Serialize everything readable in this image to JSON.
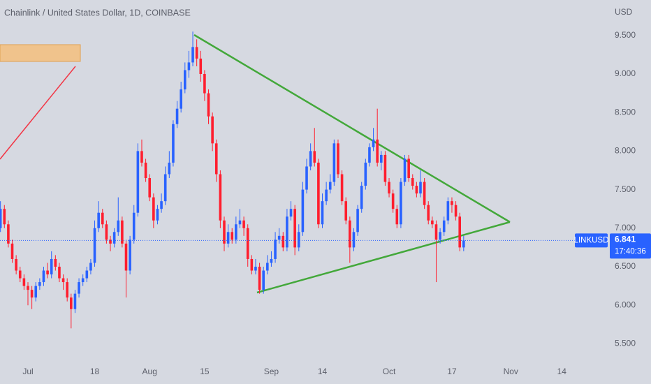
{
  "chart_data": {
    "type": "candlestick",
    "title": "Chainlink / United States Dollar, 1D, COINBASE",
    "y_axis_label": "USD",
    "symbol": "LINKUSD",
    "last_price": {
      "value": 6.841,
      "label": "6.841"
    },
    "countdown": "17:40:36",
    "up_color": "#2962ff",
    "down_color": "#ff1e2e",
    "ylim": [
      5.25,
      9.96
    ],
    "yticks": [
      {
        "value": 5.5,
        "label": "5.500"
      },
      {
        "value": 6.0,
        "label": "6.000"
      },
      {
        "value": 6.5,
        "label": "6.500"
      },
      {
        "value": 7.0,
        "label": "7.000"
      },
      {
        "value": 7.5,
        "label": "7.500"
      },
      {
        "value": 8.0,
        "label": "8.000"
      },
      {
        "value": 8.5,
        "label": "8.500"
      },
      {
        "value": 9.0,
        "label": "9.000"
      },
      {
        "value": 9.5,
        "label": "9.500"
      }
    ],
    "grid": false,
    "categories": [
      null,
      null,
      null,
      null,
      null,
      null,
      null,
      "Jul",
      null,
      null,
      null,
      null,
      null,
      null,
      null,
      null,
      null,
      null,
      null,
      null,
      null,
      null,
      null,
      null,
      "18",
      null,
      null,
      null,
      null,
      null,
      null,
      null,
      null,
      null,
      null,
      null,
      null,
      null,
      "Aug",
      null,
      null,
      null,
      null,
      null,
      null,
      null,
      null,
      null,
      null,
      null,
      null,
      null,
      "15",
      null,
      null,
      null,
      null,
      null,
      null,
      null,
      null,
      null,
      null,
      null,
      null,
      null,
      null,
      null,
      null,
      "Sep",
      null,
      null,
      null,
      null,
      null,
      null,
      null,
      null,
      null,
      null,
      null,
      null,
      "14",
      null,
      null,
      null,
      null,
      null,
      null,
      null,
      null,
      null,
      null,
      null,
      null,
      null,
      null,
      null,
      null,
      "Oct",
      null,
      null,
      null,
      null,
      null,
      null,
      null,
      null,
      null,
      null,
      null,
      null,
      null,
      null,
      null,
      "17",
      null,
      null,
      null,
      null,
      null,
      null,
      null,
      null,
      null,
      null,
      null,
      null,
      null,
      null,
      "Nov",
      null,
      null,
      null,
      null,
      null,
      null,
      null,
      null,
      null,
      null,
      null,
      null,
      "14",
      null,
      null,
      null,
      null,
      null,
      null,
      null,
      null,
      null,
      null,
      null
    ],
    "ohlc": [
      [
        7.0,
        7.35,
        6.95,
        7.25
      ],
      [
        7.25,
        7.3,
        7.0,
        7.05
      ],
      [
        7.05,
        7.1,
        6.75,
        6.8
      ],
      [
        6.8,
        6.85,
        6.55,
        6.6
      ],
      [
        6.6,
        6.65,
        6.4,
        6.45
      ],
      [
        6.45,
        6.5,
        6.3,
        6.35
      ],
      [
        6.35,
        6.4,
        6.2,
        6.25
      ],
      [
        6.25,
        6.3,
        6.0,
        6.2
      ],
      [
        6.2,
        6.25,
        5.95,
        6.1
      ],
      [
        6.1,
        6.3,
        6.05,
        6.25
      ],
      [
        6.25,
        6.35,
        6.2,
        6.3
      ],
      [
        6.3,
        6.5,
        6.25,
        6.45
      ],
      [
        6.45,
        6.55,
        6.35,
        6.4
      ],
      [
        6.4,
        6.7,
        6.35,
        6.6
      ],
      [
        6.6,
        6.65,
        6.45,
        6.5
      ],
      [
        6.5,
        6.55,
        6.3,
        6.35
      ],
      [
        6.35,
        6.4,
        6.2,
        6.3
      ],
      [
        6.3,
        6.35,
        6.05,
        6.1
      ],
      [
        6.1,
        6.15,
        5.7,
        5.95
      ],
      [
        5.95,
        6.2,
        5.9,
        6.15
      ],
      [
        6.15,
        6.35,
        6.1,
        6.3
      ],
      [
        6.3,
        6.4,
        6.25,
        6.35
      ],
      [
        6.35,
        6.5,
        6.3,
        6.45
      ],
      [
        6.45,
        6.6,
        6.4,
        6.55
      ],
      [
        6.55,
        7.1,
        6.5,
        7.0
      ],
      [
        7.0,
        7.35,
        6.95,
        7.2
      ],
      [
        7.2,
        7.25,
        7.0,
        7.05
      ],
      [
        7.05,
        7.1,
        6.8,
        6.85
      ],
      [
        6.85,
        6.9,
        6.7,
        6.8
      ],
      [
        6.8,
        7.0,
        6.75,
        6.95
      ],
      [
        6.95,
        7.4,
        6.9,
        7.1
      ],
      [
        7.1,
        7.15,
        6.75,
        6.8
      ],
      [
        6.8,
        6.85,
        6.1,
        6.45
      ],
      [
        6.45,
        6.9,
        6.4,
        6.85
      ],
      [
        6.85,
        7.3,
        6.8,
        7.2
      ],
      [
        7.2,
        8.1,
        7.15,
        8.0
      ],
      [
        8.0,
        8.15,
        7.8,
        7.85
      ],
      [
        7.85,
        7.9,
        7.6,
        7.65
      ],
      [
        7.65,
        7.7,
        7.35,
        7.4
      ],
      [
        7.4,
        7.45,
        7.0,
        7.1
      ],
      [
        7.1,
        7.3,
        7.05,
        7.25
      ],
      [
        7.25,
        7.45,
        7.2,
        7.35
      ],
      [
        7.35,
        7.8,
        7.3,
        7.7
      ],
      [
        7.7,
        8.0,
        7.65,
        7.85
      ],
      [
        7.85,
        8.4,
        7.8,
        8.35
      ],
      [
        8.35,
        8.65,
        8.3,
        8.55
      ],
      [
        8.55,
        8.9,
        8.5,
        8.8
      ],
      [
        8.8,
        9.15,
        8.75,
        9.05
      ],
      [
        9.05,
        9.3,
        8.95,
        9.15
      ],
      [
        9.15,
        9.55,
        9.1,
        9.35
      ],
      [
        9.35,
        9.45,
        9.1,
        9.2
      ],
      [
        9.2,
        9.3,
        8.9,
        9.0
      ],
      [
        9.0,
        9.05,
        8.65,
        8.75
      ],
      [
        8.75,
        8.8,
        8.35,
        8.45
      ],
      [
        8.45,
        8.5,
        8.0,
        8.1
      ],
      [
        8.1,
        8.15,
        7.6,
        7.7
      ],
      [
        7.7,
        7.75,
        7.0,
        7.1
      ],
      [
        7.1,
        7.15,
        6.7,
        6.8
      ],
      [
        6.8,
        7.05,
        6.75,
        6.95
      ],
      [
        6.95,
        7.0,
        6.8,
        6.85
      ],
      [
        6.85,
        7.15,
        6.8,
        7.05
      ],
      [
        7.05,
        7.25,
        7.0,
        7.1
      ],
      [
        7.1,
        7.15,
        6.9,
        7.0
      ],
      [
        7.0,
        7.05,
        6.5,
        6.6
      ],
      [
        6.6,
        6.65,
        6.4,
        6.45
      ],
      [
        6.45,
        6.6,
        6.4,
        6.5
      ],
      [
        6.5,
        6.55,
        6.15,
        6.2
      ],
      [
        6.2,
        6.5,
        6.15,
        6.45
      ],
      [
        6.45,
        6.65,
        6.4,
        6.55
      ],
      [
        6.55,
        6.7,
        6.5,
        6.6
      ],
      [
        6.6,
        6.95,
        6.55,
        6.85
      ],
      [
        6.85,
        7.0,
        6.8,
        6.9
      ],
      [
        6.9,
        6.95,
        6.7,
        6.75
      ],
      [
        6.75,
        7.25,
        6.7,
        7.15
      ],
      [
        7.15,
        7.35,
        7.1,
        7.25
      ],
      [
        7.25,
        7.3,
        6.65,
        6.75
      ],
      [
        6.75,
        7.05,
        6.7,
        6.95
      ],
      [
        6.95,
        7.6,
        6.9,
        7.5
      ],
      [
        7.5,
        7.9,
        7.45,
        7.8
      ],
      [
        7.8,
        8.1,
        7.75,
        8.0
      ],
      [
        8.0,
        8.3,
        7.8,
        7.85
      ],
      [
        7.85,
        7.9,
        7.0,
        7.05
      ],
      [
        7.05,
        7.45,
        7.0,
        7.35
      ],
      [
        7.35,
        7.6,
        7.3,
        7.5
      ],
      [
        7.5,
        7.7,
        7.45,
        7.6
      ],
      [
        7.6,
        8.15,
        7.55,
        8.1
      ],
      [
        8.1,
        8.15,
        7.65,
        7.7
      ],
      [
        7.7,
        7.75,
        7.3,
        7.35
      ],
      [
        7.35,
        7.4,
        7.05,
        7.1
      ],
      [
        7.1,
        7.15,
        6.55,
        6.75
      ],
      [
        6.75,
        7.0,
        6.7,
        6.95
      ],
      [
        6.95,
        7.3,
        6.9,
        7.25
      ],
      [
        7.25,
        7.6,
        7.2,
        7.55
      ],
      [
        7.55,
        7.9,
        7.5,
        7.85
      ],
      [
        7.85,
        8.1,
        7.8,
        8.05
      ],
      [
        8.05,
        8.3,
        8.0,
        8.15
      ],
      [
        8.15,
        8.55,
        7.8,
        7.85
      ],
      [
        7.85,
        8.0,
        7.75,
        7.95
      ],
      [
        7.95,
        8.0,
        7.55,
        7.6
      ],
      [
        7.6,
        7.65,
        7.4,
        7.45
      ],
      [
        7.45,
        7.5,
        7.2,
        7.25
      ],
      [
        7.25,
        7.3,
        7.0,
        7.05
      ],
      [
        7.05,
        7.65,
        7.0,
        7.6
      ],
      [
        7.6,
        7.95,
        7.55,
        7.9
      ],
      [
        7.9,
        7.95,
        7.6,
        7.65
      ],
      [
        7.65,
        7.7,
        7.5,
        7.55
      ],
      [
        7.55,
        7.6,
        7.4,
        7.45
      ],
      [
        7.45,
        7.75,
        7.4,
        7.6
      ],
      [
        7.6,
        7.65,
        7.25,
        7.3
      ],
      [
        7.3,
        7.35,
        7.05,
        7.1
      ],
      [
        7.1,
        7.15,
        7.0,
        7.05
      ],
      [
        7.05,
        7.1,
        6.3,
        6.85
      ],
      [
        6.85,
        7.0,
        6.8,
        6.95
      ],
      [
        6.95,
        7.15,
        6.9,
        7.1
      ],
      [
        7.1,
        7.4,
        7.05,
        7.35
      ],
      [
        7.35,
        7.4,
        7.2,
        7.3
      ],
      [
        7.3,
        7.35,
        7.1,
        7.15
      ],
      [
        7.15,
        7.2,
        6.7,
        6.75
      ],
      [
        6.75,
        6.9,
        6.7,
        6.84
      ],
      null,
      null,
      null,
      null,
      null,
      null,
      null,
      null,
      null,
      null,
      null,
      null,
      null,
      null,
      null,
      null,
      null,
      null,
      null,
      null,
      null,
      null,
      null,
      null,
      null,
      null,
      null,
      null,
      null,
      null,
      null,
      null,
      null,
      null,
      null,
      null
    ]
  }
}
